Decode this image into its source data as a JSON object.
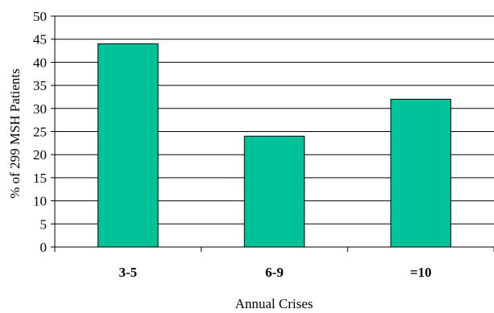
{
  "chart_data": {
    "type": "bar",
    "categories": [
      "3-5",
      "6-9",
      "=10"
    ],
    "values": [
      44,
      24,
      32
    ],
    "xlabel": "Annual Crises",
    "ylabel": "% of 299 MSH Patients",
    "ylim": [
      0,
      50
    ],
    "yticks": [
      0,
      5,
      10,
      15,
      20,
      25,
      30,
      35,
      40,
      45,
      50
    ],
    "ytick_labels": [
      "0",
      "5",
      "10",
      "15",
      "20",
      "25",
      "30",
      "35",
      "40",
      "45",
      "50"
    ],
    "grid": true,
    "legend": "none",
    "bar_color": "#00C299",
    "bar_edge_color": "#000000"
  }
}
